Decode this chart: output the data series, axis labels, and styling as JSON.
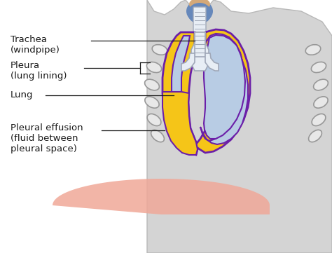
{
  "bg_color": "#ffffff",
  "body_color": "#d4d4d4",
  "body_edge_color": "#b8b8b8",
  "lung_fill_color": "#b8cce4",
  "pleura_yellow_color": "#f5c518",
  "pleura_purple_color": "#6b1fa8",
  "pleura_purple_inner": "#7030a0",
  "trachea_fill": "#e8eef5",
  "trachea_edge": "#a0a8b8",
  "head_blue": "#6688bb",
  "head_skin": "#d4a878",
  "diaphragm_color": "#f0a898",
  "rib_fill": "#e8e8e8",
  "rib_edge": "#989898",
  "text_color": "#1a1a1a",
  "label_trachea": "Trachea\n(windpipe)",
  "label_pleura": "Pleura\n(lung lining)",
  "label_lung": "Lung",
  "label_effusion": "Pleural effusion\n(fluid between\npleural space)"
}
